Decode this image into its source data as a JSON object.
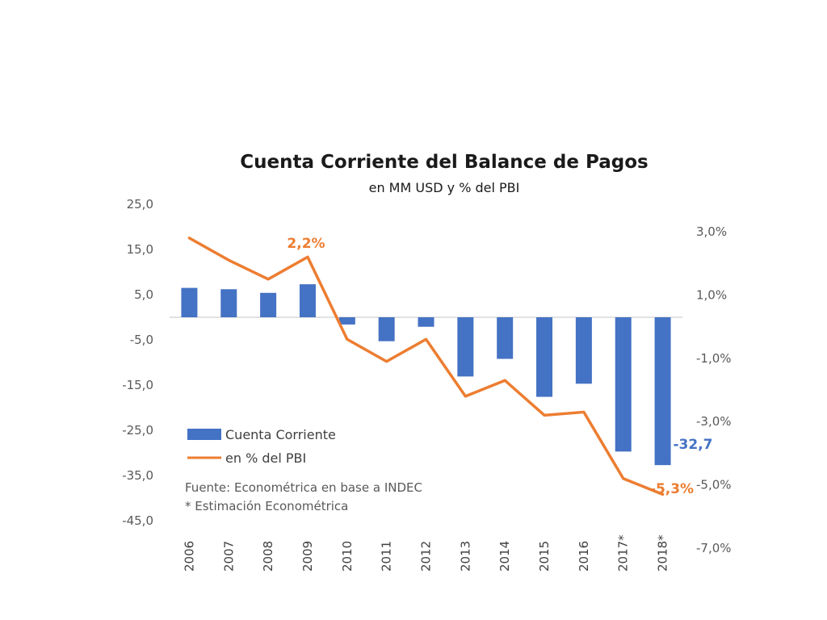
{
  "chart_data": {
    "type": "bar",
    "title": "Cuenta Corriente del Balance de Pagos",
    "subtitle": "en MM USD y % del PBI",
    "categories": [
      "2006",
      "2007",
      "2008",
      "2009",
      "2010",
      "2011",
      "2012",
      "2013",
      "2014",
      "2015",
      "2016",
      "2017*",
      "2018*"
    ],
    "series": [
      {
        "name": "Cuenta Corriente",
        "type": "bar",
        "axis": "left",
        "color": "#4472c4",
        "values": [
          6.5,
          6.2,
          5.4,
          7.3,
          -1.6,
          -5.3,
          -2.1,
          -13.1,
          -9.2,
          -17.6,
          -14.7,
          -29.7,
          -32.7
        ]
      },
      {
        "name": "en % del PBI",
        "type": "line",
        "axis": "right",
        "color": "#ed7d31",
        "values": [
          2.8,
          2.1,
          1.5,
          2.2,
          -0.4,
          -1.1,
          -0.4,
          -2.2,
          -1.7,
          -2.8,
          -2.7,
          -4.8,
          -5.3
        ]
      }
    ],
    "yaxis_left": {
      "ylim": [
        -45,
        25
      ],
      "ticks": [
        "25,0",
        "15,0",
        "5,0",
        "-5,0",
        "-15,0",
        "-25,0",
        "-35,0",
        "-45,0"
      ]
    },
    "yaxis_right": {
      "ylim": [
        -7,
        3
      ],
      "ticks": [
        "3,0%",
        "1,0%",
        "-1,0%",
        "-3,0%",
        "-5,0%",
        "-7,0%"
      ]
    },
    "data_labels": {
      "bar_last": "-32,7",
      "line_2009": "2,2%",
      "line_last": "-5,3%"
    },
    "legend": {
      "position": "bottom-left"
    },
    "notes": [
      "Fuente: Econométrica en base a INDEC",
      "* Estimación Econométrica"
    ],
    "grid": false
  }
}
